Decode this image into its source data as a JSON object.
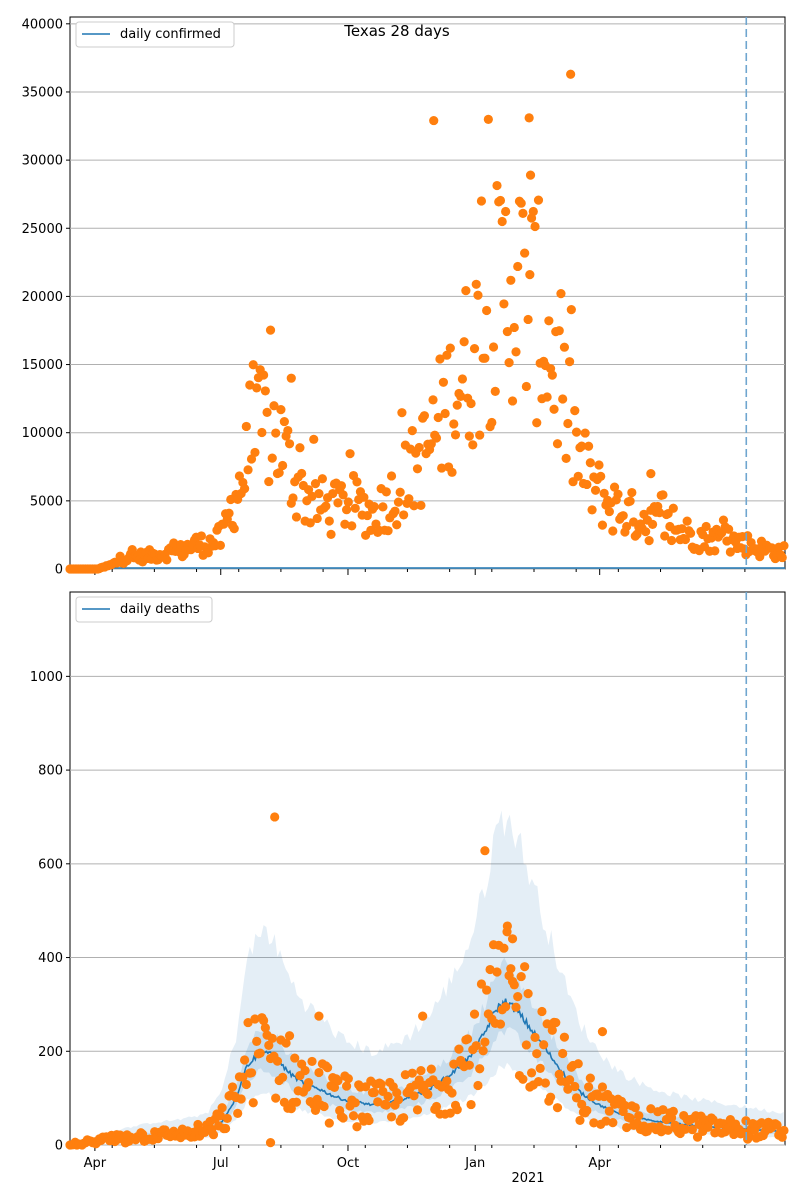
{
  "chart_data": [
    {
      "type": "scatter",
      "title": "Texas 28 days",
      "legend": {
        "placement": "top-left",
        "entries": [
          "daily confirmed"
        ]
      },
      "grid": "y",
      "ylim": [
        0,
        40500
      ],
      "yticks": [
        0,
        5000,
        10000,
        15000,
        20000,
        25000,
        30000,
        35000,
        40000
      ],
      "x_range_days": [
        0,
        517
      ],
      "x_axis": "shared with lower panel (tick labels shown on lower panel only)",
      "vline_day": 489,
      "series": [
        {
          "name": "daily confirmed",
          "kind": "line",
          "values": "approximately 0 throughout"
        },
        {
          "kind": "scatter",
          "points": "daily observations (see script sampling of visible shape)"
        }
      ],
      "series_colors": {
        "line": "#1f77b4",
        "points": "#ff7f0e",
        "vline": "#6fa6cf"
      },
      "notable_points": [
        {
          "x": "2020-10 (late)",
          "y": 32900
        },
        {
          "x": "2020-12 (late)",
          "y": 33100
        },
        {
          "x": "2021-02 (early)",
          "y": 36300
        }
      ],
      "series_shape": [
        [
          0,
          0
        ],
        [
          20,
          0
        ],
        [
          30,
          300
        ],
        [
          40,
          800
        ],
        [
          50,
          900
        ],
        [
          60,
          1000
        ],
        [
          70,
          1200
        ],
        [
          80,
          1300
        ],
        [
          90,
          1800
        ],
        [
          100,
          1800
        ],
        [
          110,
          2300
        ],
        [
          115,
          4000
        ],
        [
          120,
          5500
        ],
        [
          126,
          7000
        ],
        [
          133,
          9500
        ],
        [
          140,
          10500
        ],
        [
          147,
          10000
        ],
        [
          154,
          9000
        ],
        [
          160,
          7000
        ],
        [
          168,
          5500
        ],
        [
          180,
          4800
        ],
        [
          190,
          4200
        ],
        [
          200,
          5000
        ],
        [
          210,
          4500
        ],
        [
          220,
          4000
        ],
        [
          230,
          5000
        ],
        [
          240,
          6200
        ],
        [
          250,
          7500
        ],
        [
          260,
          9000
        ],
        [
          270,
          11500
        ],
        [
          280,
          13500
        ],
        [
          290,
          15500
        ],
        [
          300,
          17500
        ],
        [
          310,
          20000
        ],
        [
          320,
          21500
        ],
        [
          330,
          20000
        ],
        [
          340,
          18500
        ],
        [
          350,
          15000
        ],
        [
          360,
          11000
        ],
        [
          370,
          7500
        ],
        [
          380,
          5800
        ],
        [
          390,
          4800
        ],
        [
          400,
          4200
        ],
        [
          410,
          3800
        ],
        [
          420,
          3600
        ],
        [
          430,
          3200
        ],
        [
          440,
          2800
        ],
        [
          450,
          2500
        ],
        [
          460,
          2300
        ],
        [
          470,
          2200
        ],
        [
          480,
          2000
        ],
        [
          490,
          1800
        ],
        [
          500,
          1500
        ],
        [
          510,
          1300
        ],
        [
          517,
          1200
        ]
      ]
    },
    {
      "type": "scatter",
      "legend": {
        "placement": "top-left",
        "entries": [
          "daily deaths"
        ]
      },
      "grid": "y",
      "ylim": [
        0,
        1180
      ],
      "yticks": [
        0,
        200,
        400,
        600,
        800,
        1000
      ],
      "xtick_labels": [
        "Apr",
        "Jul",
        "Oct",
        "Jan",
        "Apr"
      ],
      "xtick_days": [
        18,
        109,
        201,
        293,
        383
      ],
      "year_label": "2021",
      "x_range_days": [
        0,
        517
      ],
      "vline_day": 489,
      "series": [
        {
          "name": "daily deaths",
          "kind": "line",
          "color": "#1f77b4"
        },
        {
          "kind": "scatter",
          "color": "#ff7f0e"
        }
      ],
      "series_colors": {
        "line": "#1f77b4",
        "points": "#ff7f0e",
        "band": "#1f77b4",
        "vline": "#6fa6cf"
      },
      "notable_points": [
        {
          "x": "2020-07",
          "y": 700
        },
        {
          "x": "2021-01",
          "y": 628
        }
      ],
      "line_shape": [
        [
          0,
          0
        ],
        [
          15,
          5
        ],
        [
          30,
          12
        ],
        [
          45,
          16
        ],
        [
          60,
          20
        ],
        [
          75,
          22
        ],
        [
          90,
          25
        ],
        [
          100,
          30
        ],
        [
          110,
          50
        ],
        [
          120,
          100
        ],
        [
          128,
          170
        ],
        [
          135,
          190
        ],
        [
          142,
          200
        ],
        [
          150,
          180
        ],
        [
          160,
          150
        ],
        [
          170,
          130
        ],
        [
          180,
          120
        ],
        [
          190,
          105
        ],
        [
          200,
          95
        ],
        [
          210,
          90
        ],
        [
          220,
          85
        ],
        [
          230,
          90
        ],
        [
          245,
          100
        ],
        [
          260,
          120
        ],
        [
          275,
          150
        ],
        [
          290,
          190
        ],
        [
          300,
          240
        ],
        [
          308,
          290
        ],
        [
          315,
          305
        ],
        [
          322,
          290
        ],
        [
          330,
          260
        ],
        [
          340,
          220
        ],
        [
          350,
          180
        ],
        [
          360,
          140
        ],
        [
          370,
          110
        ],
        [
          380,
          90
        ],
        [
          390,
          75
        ],
        [
          400,
          65
        ],
        [
          410,
          58
        ],
        [
          420,
          52
        ],
        [
          430,
          48
        ],
        [
          440,
          45
        ],
        [
          450,
          42
        ],
        [
          460,
          40
        ],
        [
          470,
          38
        ],
        [
          480,
          36
        ],
        [
          490,
          34
        ],
        [
          500,
          32
        ],
        [
          510,
          30
        ],
        [
          517,
          29
        ]
      ],
      "band_inner_scale": [
        0.8,
        1.25
      ],
      "band_outer_scale": [
        0.55,
        2.3
      ]
    }
  ]
}
